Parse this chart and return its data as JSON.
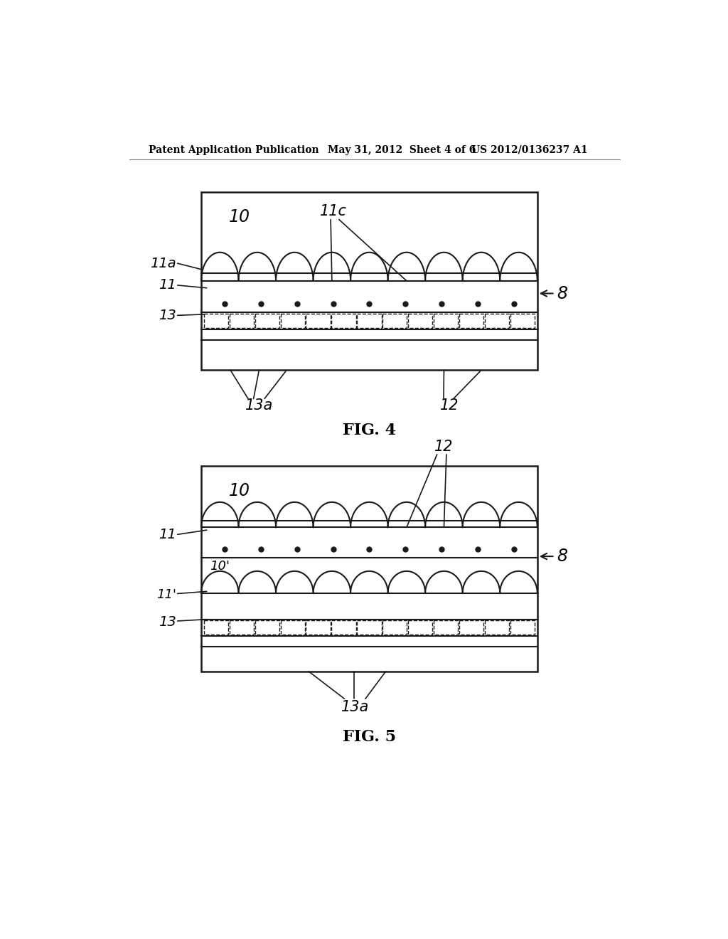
{
  "bg_color": "#ffffff",
  "line_color": "#1a1a1a",
  "header_left": "Patent Application Publication",
  "header_mid": "May 31, 2012  Sheet 4 of 6",
  "header_right": "US 2012/0136237 A1",
  "fig4_label": "FIG. 4",
  "fig5_label": "FIG. 5"
}
